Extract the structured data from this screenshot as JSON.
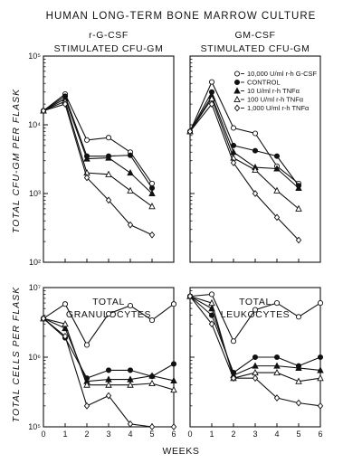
{
  "figure": {
    "title": "HUMAN LONG-TERM BONE MARROW CULTURE",
    "ylabel_top": "TOTAL CFU-GM PER FLASK",
    "ylabel_bottom": "TOTAL CELLS PER FLASK",
    "xlabel": "WEEKS",
    "legend": [
      {
        "label": "10,000 U/ml r-h G-CSF",
        "marker": "circle-open"
      },
      {
        "label": "CONTROL",
        "marker": "circle-filled"
      },
      {
        "label": "10 U/ml r-h TNFα",
        "marker": "triangle-filled"
      },
      {
        "label": "100 U/ml r-h TNFα",
        "marker": "triangle-open"
      },
      {
        "label": "1,000 U/ml r-h TNFα",
        "marker": "diamond-open"
      }
    ]
  },
  "chart_data": [
    {
      "type": "line",
      "title": "r-G-CSF STIMULATED CFU-GM",
      "x": [
        0,
        1,
        2,
        3,
        4,
        5
      ],
      "xlim": [
        0,
        6
      ],
      "xticks": [
        "0",
        "1",
        "2",
        "3",
        "4",
        "5",
        "6"
      ],
      "yscale": "log",
      "ylim": [
        100,
        100000
      ],
      "yticks": [
        "10²",
        "10³",
        "10⁴",
        "10⁵"
      ],
      "series": [
        {
          "marker": "circle-open",
          "values": [
            16000,
            28000,
            6000,
            6500,
            4000,
            1400
          ]
        },
        {
          "marker": "circle-filled",
          "values": [
            16000,
            26000,
            3500,
            3500,
            3600,
            1200
          ]
        },
        {
          "marker": "triangle-filled",
          "values": [
            16000,
            24000,
            3200,
            3300,
            2000,
            1000
          ]
        },
        {
          "marker": "triangle-open",
          "values": [
            16000,
            22000,
            2000,
            1900,
            1100,
            650
          ]
        },
        {
          "marker": "diamond-open",
          "values": [
            16000,
            20000,
            1700,
            800,
            350,
            250
          ]
        }
      ]
    },
    {
      "type": "line",
      "title": "GM-CSF STIMULATED CFU-GM",
      "x": [
        0,
        1,
        2,
        3,
        4,
        5
      ],
      "xlim": [
        0,
        6
      ],
      "xticks": [
        "0",
        "1",
        "2",
        "3",
        "4",
        "5",
        "6"
      ],
      "yscale": "log",
      "ylim": [
        100,
        100000
      ],
      "yticks": [
        "10²",
        "10³",
        "10⁴",
        "10⁵"
      ],
      "series": [
        {
          "marker": "circle-open",
          "values": [
            8000,
            42000,
            9000,
            7500,
            2500,
            1400
          ]
        },
        {
          "marker": "circle-filled",
          "values": [
            8000,
            30000,
            5000,
            4200,
            3500,
            1300
          ]
        },
        {
          "marker": "triangle-filled",
          "values": [
            8000,
            26000,
            4000,
            2400,
            2300,
            1200
          ]
        },
        {
          "marker": "triangle-open",
          "values": [
            8000,
            24000,
            3300,
            2200,
            1100,
            600
          ]
        },
        {
          "marker": "diamond-open",
          "values": [
            8000,
            20000,
            2800,
            1000,
            450,
            210
          ]
        }
      ]
    },
    {
      "type": "line",
      "title": "TOTAL GRANULOCYTES",
      "x": [
        0,
        1,
        2,
        3,
        4,
        5,
        6
      ],
      "xlim": [
        0,
        6
      ],
      "xticks": [
        "0",
        "1",
        "2",
        "3",
        "4",
        "5",
        "6"
      ],
      "yscale": "log",
      "ylim": [
        100000,
        10000000
      ],
      "yticks": [
        "10⁵",
        "10⁶",
        "10⁷"
      ],
      "series": [
        {
          "marker": "circle-open",
          "values": [
            3600000,
            5800000,
            1500000,
            4200000,
            5500000,
            3400000,
            5800000
          ]
        },
        {
          "marker": "circle-filled",
          "values": [
            3600000,
            1900000,
            500000,
            650000,
            650000,
            530000,
            800000
          ]
        },
        {
          "marker": "triangle-filled",
          "values": [
            3600000,
            2600000,
            450000,
            480000,
            480000,
            540000,
            460000
          ]
        },
        {
          "marker": "triangle-open",
          "values": [
            3600000,
            3000000,
            400000,
            400000,
            400000,
            420000,
            340000
          ]
        },
        {
          "marker": "diamond-open",
          "values": [
            3600000,
            2000000,
            200000,
            280000,
            110000,
            100000,
            100000
          ]
        }
      ]
    },
    {
      "type": "line",
      "title": "TOTAL LEUKOCYTES",
      "x": [
        0,
        1,
        2,
        3,
        4,
        5,
        6
      ],
      "xlim": [
        0,
        6
      ],
      "xticks": [
        "0",
        "1",
        "2",
        "3",
        "4",
        "5",
        "6"
      ],
      "yscale": "log",
      "ylim": [
        100000,
        10000000
      ],
      "yticks": [
        "10⁵",
        "10⁶",
        "10⁷"
      ],
      "series": [
        {
          "marker": "circle-open",
          "values": [
            7500000,
            8000000,
            1700000,
            4800000,
            6000000,
            3800000,
            6000000
          ]
        },
        {
          "marker": "circle-filled",
          "values": [
            7500000,
            4000000,
            600000,
            1000000,
            1000000,
            750000,
            1000000
          ]
        },
        {
          "marker": "triangle-filled",
          "values": [
            7500000,
            5000000,
            550000,
            750000,
            750000,
            700000,
            650000
          ]
        },
        {
          "marker": "triangle-open",
          "values": [
            7500000,
            6000000,
            500000,
            600000,
            600000,
            450000,
            500000
          ]
        },
        {
          "marker": "diamond-open",
          "values": [
            7500000,
            3000000,
            500000,
            500000,
            260000,
            220000,
            200000
          ]
        }
      ]
    }
  ]
}
